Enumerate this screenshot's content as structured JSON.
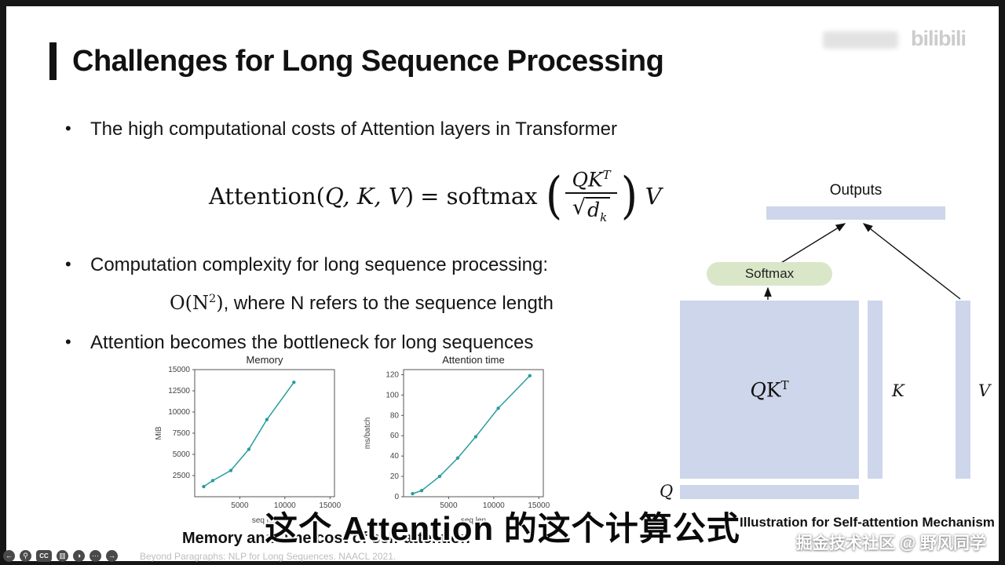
{
  "colors": {
    "slide_bg": "#ffffff",
    "frame_bg": "#161616",
    "diagram_block_blue": "#cdd6ea",
    "softmax_green": "#d9e7c8",
    "chart_line": "#2a9d9d"
  },
  "slide": {
    "title": "Challenges for Long Sequence Processing",
    "bullet1": "The high computational costs of Attention layers in Transformer",
    "bullet2": "Computation complexity for long sequence processing:",
    "bullet3": "Attention becomes the bottleneck for long sequences",
    "chart_caption": "Memory and time cost of self-attention"
  },
  "formula": {
    "name": "Attention",
    "paren_open": "(",
    "args": "Q, K, V",
    "paren_close": ")",
    "equals": "= softmax",
    "big_open": "(",
    "num_base": "QK",
    "num_sup": "T",
    "den_sym": "√",
    "den_base": "d",
    "den_sub": "k",
    "big_close": ")",
    "tail": "V"
  },
  "complexity": {
    "pre": "O(N",
    "sup": "2",
    "close": ")",
    "rest": ", where N refers to the sequence length"
  },
  "chart_data": [
    {
      "id": "memory",
      "type": "line",
      "title": "Memory",
      "xlabel": "seq len",
      "ylabel": "MiB",
      "xlim": [
        0,
        15500
      ],
      "ylim": [
        0,
        15000
      ],
      "xticks": [
        5000,
        10000,
        15000
      ],
      "yticks": [
        2500,
        5000,
        7500,
        10000,
        12500,
        15000
      ],
      "x": [
        1000,
        2000,
        4000,
        6000,
        8000,
        11000
      ],
      "y": [
        1200,
        1900,
        3100,
        5600,
        9100,
        13500
      ],
      "color": "#2a9d9d",
      "legend": "none",
      "grid": false
    },
    {
      "id": "attention-time",
      "type": "line",
      "title": "Attention time",
      "xlabel": "seq len",
      "ylabel": "ms/batch",
      "xlim": [
        0,
        15500
      ],
      "ylim": [
        0,
        125
      ],
      "xticks": [
        5000,
        10000,
        15000
      ],
      "yticks": [
        0,
        20,
        40,
        60,
        80,
        100,
        120
      ],
      "x": [
        1000,
        2000,
        4000,
        6000,
        8000,
        10500,
        14000
      ],
      "y": [
        3,
        6,
        20,
        38,
        59,
        87,
        119
      ],
      "color": "#2a9d9d",
      "legend": "none",
      "grid": false
    }
  ],
  "diagram": {
    "outputs_label": "Outputs",
    "softmax_label": "Softmax",
    "qkt_base_q": "Q",
    "qkt_base_k": "K",
    "qkt_sup": "T",
    "k_label": "K",
    "v_label": "V",
    "q_label": "Q",
    "caption": "Illustration for Self-attention Mechanism"
  },
  "overlay": {
    "subtitle": "这个 Attention 的这个计算公式",
    "watermark_bottom": "掘金技术社区 @ 野风同学",
    "watermark_logo": "bilibili"
  },
  "player": {
    "citation": "Beyond Paragraphs: NLP for Long Sequences. NAACL 2021.",
    "icons": [
      {
        "name": "back-icon",
        "glyph": "←"
      },
      {
        "name": "search-icon",
        "glyph": "⚲"
      },
      {
        "name": "cc-icon",
        "glyph": "CC"
      },
      {
        "name": "panel-icon",
        "glyph": "▥"
      },
      {
        "name": "contrast-icon",
        "glyph": "◑"
      },
      {
        "name": "more-icon",
        "glyph": "⋯"
      },
      {
        "name": "forward-icon",
        "glyph": "→"
      }
    ]
  }
}
